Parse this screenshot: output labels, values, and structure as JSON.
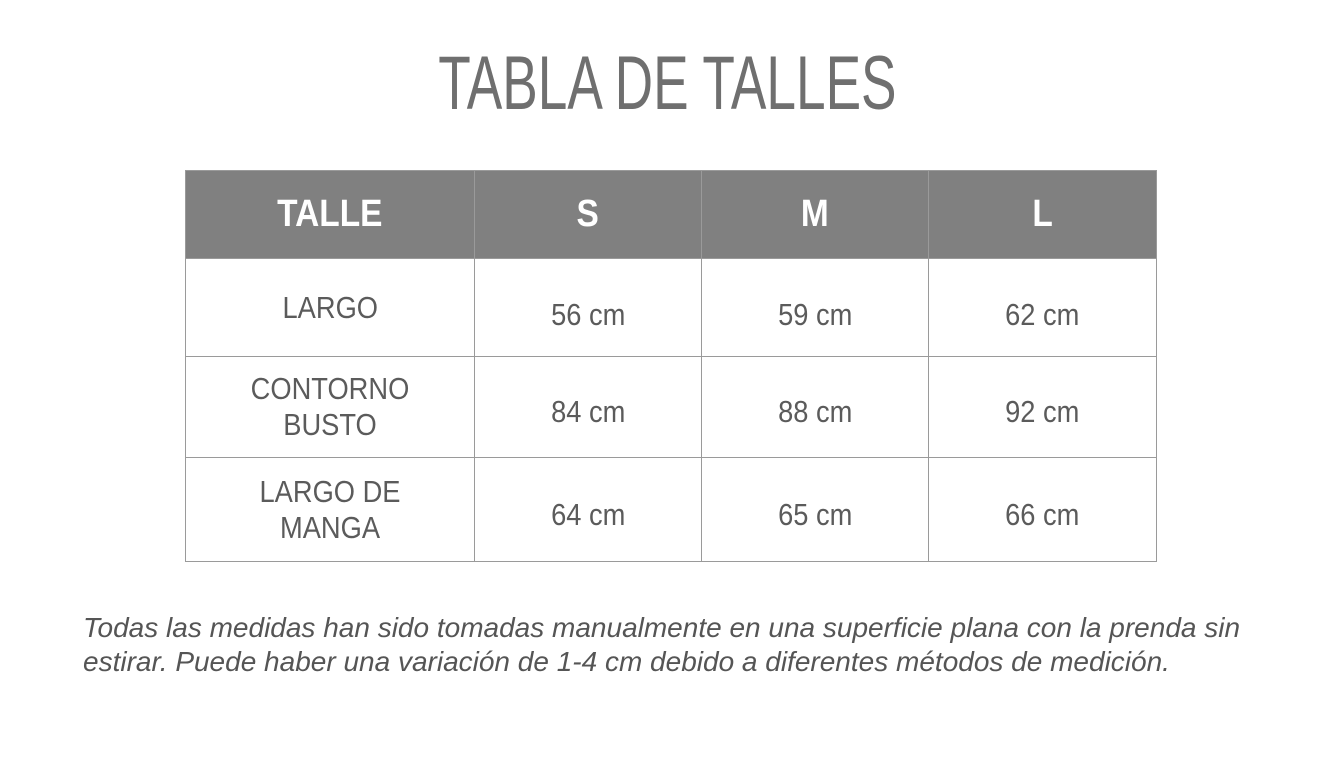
{
  "title": "TABLA DE TALLES",
  "table": {
    "headers": [
      "TALLE",
      "S",
      "M",
      "L"
    ],
    "rows": [
      {
        "label": "LARGO",
        "values": [
          "56 cm",
          "59 cm",
          "62 cm"
        ]
      },
      {
        "label": "CONTORNO BUSTO",
        "values": [
          "84 cm",
          "88 cm",
          "92 cm"
        ]
      },
      {
        "label": "LARGO DE MANGA",
        "values": [
          "64 cm",
          "65 cm",
          "66 cm"
        ]
      }
    ]
  },
  "note": "Todas las medidas han sido tomadas manualmente en una superficie plana con la prenda sin estirar. Puede haber una variación de 1-4 cm debido a diferentes métodos de medición.",
  "colors": {
    "header_bg": "#808080",
    "text": "#5b5b5b",
    "border": "#9a9a9a"
  }
}
